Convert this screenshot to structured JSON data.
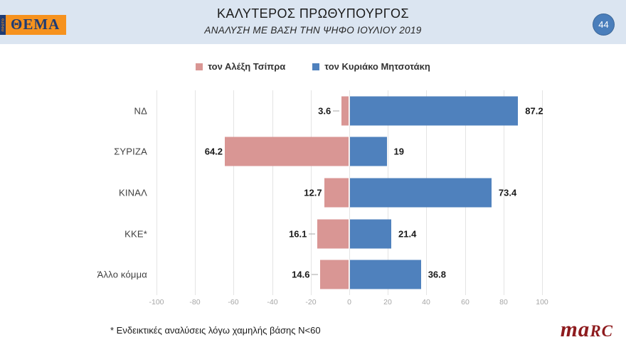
{
  "header": {
    "logo_vertical": "ΠΡΩΤΟ",
    "logo_text": "ΘΕΜΑ",
    "title": "ΚΑΛΥΤΕΡΟΣ ΠΡΩΘΥΠΟΥΡΓΟΣ",
    "subtitle": "ΑΝΑΛΥΣΗ ΜΕ ΒΑΣΗ ΤΗΝ ΨΗΦΟ ΙΟΥΛΙΟΥ 2019",
    "page_number": "44"
  },
  "chart_data": {
    "type": "bar",
    "orientation": "horizontal-diverging",
    "title": "ΚΑΛΥΤΕΡΟΣ ΠΡΩΘΥΠΟΥΡΓΟΣ",
    "subtitle": "ΑΝΑΛΥΣΗ ΜΕ ΒΑΣΗ ΤΗΝ ΨΗΦΟ ΙΟΥΛΙΟΥ 2019",
    "categories": [
      "ΝΔ",
      "ΣΥΡΙΖΑ",
      "ΚΙΝΑΛ",
      "ΚΚΕ*",
      "Άλλο κόμμα"
    ],
    "series": [
      {
        "name": "τον Αλέξη Τσίπρα",
        "color": "#d99694",
        "direction": "left",
        "values": [
          3.6,
          64.2,
          12.7,
          16.1,
          14.6
        ],
        "leader_lines": [
          true,
          false,
          false,
          true,
          true
        ]
      },
      {
        "name": "τον Κυριάκο Μητσοτάκη",
        "color": "#4f81bd",
        "direction": "right",
        "values": [
          87.2,
          19,
          73.4,
          21.4,
          36.8
        ],
        "leader_lines": [
          false,
          false,
          false,
          false,
          false
        ]
      }
    ],
    "x_ticks": [
      -100,
      -80,
      -60,
      -40,
      -20,
      0,
      20,
      40,
      60,
      80,
      100
    ],
    "xlim": [
      -100,
      100
    ],
    "grid": true,
    "legend_position": "top"
  },
  "footnote": "* Ενδεικτικές αναλύσεις λόγω χαμηλής βάσης N<60",
  "branding": {
    "marc_ma": "ma",
    "marc_rc": "RC"
  },
  "colors": {
    "header_bg": "#dbe5f1",
    "badge_blue": "#4a7ebb",
    "tsipras_pink": "#d99694",
    "mitsotakis_blue": "#4f81bd",
    "marc_red": "#8e1b1e"
  }
}
